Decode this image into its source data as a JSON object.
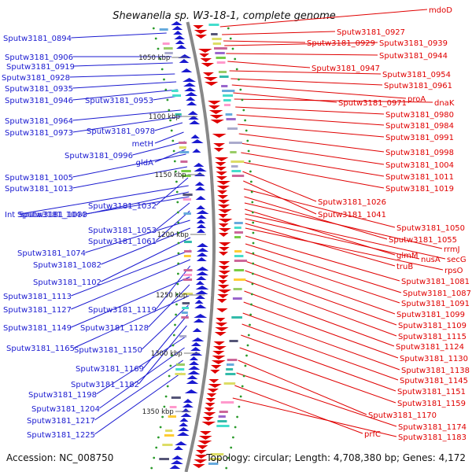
{
  "title": "Shewanella sp. W3-18-1, complete genome",
  "footer": {
    "accession": "Accession: NC_008750",
    "summary": "Topology: circular; Length: 4,708,380 bp; Genes: 4,172"
  },
  "colors": {
    "forward": "#e00000",
    "reverse": "#1a1ad0",
    "backbone": "#888888",
    "tick": "#2a9a2a"
  },
  "scale_labels": [
    "1050 kbp",
    "1100 kbp",
    "1150 kbp",
    "1200 kbp",
    "1250 kbp",
    "1300 kbp",
    "1350 kbp"
  ],
  "left_labels": [
    "Sputw3181_0894",
    "Sputw3181_0906",
    "Sputw3181_0919",
    "Sputw3181_0928",
    "Sputw3181_0935",
    "Sputw3181_0946",
    "Sputw3181_0953",
    "Sputw3181_0964",
    "Sputw3181_0973",
    "Sputw3181_0978",
    "metH",
    "Sputw3181_0996",
    "gldA",
    "Sputw3181_1005",
    "Sputw3181_1013",
    "Sputw3181_1032",
    "Int",
    "Sputw3181_1033",
    "Sputw3181_1044",
    "Sputw3181_1053",
    "Sputw3181_1061",
    "Sputw3181_1074",
    "Sputw3181_1082",
    "Sputw3181_1102",
    "Sputw3181_1113",
    "Sputw3181_1127",
    "Sputw3181_1119",
    "Sputw3181_1149",
    "Sputw3181_1128",
    "Sputw3181_1165",
    "Sputw3181_1150",
    "Sputw3181_1169",
    "Sputw3181_1182",
    "Sputw3181_1198",
    "Sputw3181_1204",
    "Sputw3181_1217",
    "Sputw3181_1225"
  ],
  "right_labels": [
    "mdoD",
    "Sputw3181_0927",
    "Sputw3181_0929",
    "Sputw3181_0939",
    "Sputw3181_0944",
    "Sputw3181_0947",
    "Sputw3181_0954",
    "Sputw3181_0961",
    "proA",
    "Sputw3181_0971",
    "dnaK",
    "Sputw3181_0980",
    "Sputw3181_0984",
    "Sputw3181_0991",
    "Sputw3181_0998",
    "Sputw3181_1004",
    "Sputw3181_1011",
    "Sputw3181_1019",
    "Sputw3181_1026",
    "Sputw3181_1041",
    "Sputw3181_1050",
    "Sputw3181_1055",
    "rrmJ",
    "glmM",
    "secG",
    "nusA",
    "truB",
    "rpsO",
    "Sputw3181_1081",
    "Sputw3181_1087",
    "Sputw3181_1091",
    "Sputw3181_1099",
    "Sputw3181_1109",
    "Sputw3181_1115",
    "Sputw3181_1124",
    "Sputw3181_1130",
    "Sputw3181_1138",
    "Sputw3181_1145",
    "Sputw3181_1151",
    "Sputw3181_1159",
    "Sputw3181_1170",
    "Sputw3181_1174",
    "prfC",
    "Sputw3181_1183"
  ]
}
